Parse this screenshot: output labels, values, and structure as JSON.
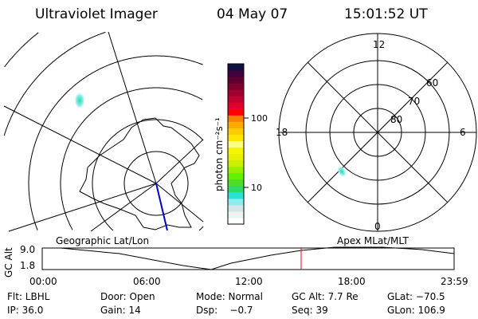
{
  "header": {
    "instrument": "Ultraviolet Imager",
    "date": "04 May 07",
    "time": "15:01:52 UT"
  },
  "colorbar": {
    "label": "photon cm⁻²s⁻¹",
    "ticks": [
      "100",
      "10"
    ],
    "colors": [
      "#ffffff",
      "#eaf5ef",
      "#d4e5e5",
      "#8eebf0",
      "#2be0d6",
      "#2bdc6a",
      "#4cdc2a",
      "#64f000",
      "#96f000",
      "#c8f000",
      "#e6f000",
      "#f5f500",
      "#ffff80",
      "#ffe600",
      "#ffcc00",
      "#ffaa00",
      "#ff8000",
      "#ff0000",
      "#e00030",
      "#c00030",
      "#a00030",
      "#800030",
      "#600030",
      "#400040",
      "#101040"
    ]
  },
  "polar_plot": {
    "mlt_labels": {
      "top": "12",
      "bottom": "0",
      "left": "18",
      "right": "6"
    },
    "lat_labels": [
      "80",
      "70",
      "60"
    ]
  },
  "altitude_plot": {
    "left_label": "Geographic Lat/Lon",
    "right_label": "Apex MLat/MLT",
    "ylabel": "GC Alt",
    "yticks": [
      "9.0",
      "1.8"
    ],
    "xticks": [
      "00:00",
      "06:00",
      "12:00",
      "18:00",
      "23:59"
    ],
    "current_time_marker_color": "#ff0000"
  },
  "status": {
    "filter": "Flt: LBHL",
    "door": "Door: Open",
    "mode": "Mode: Normal",
    "gc_alt": "GC Alt: 7.7 Re",
    "glat": "GLat: −70.5",
    "ip": "IP: 36.0",
    "gain": "Gain: 14",
    "dsp": "Dsp:    −0.7",
    "seq": "Seq: 39",
    "glon": "GLon: 106.9"
  }
}
